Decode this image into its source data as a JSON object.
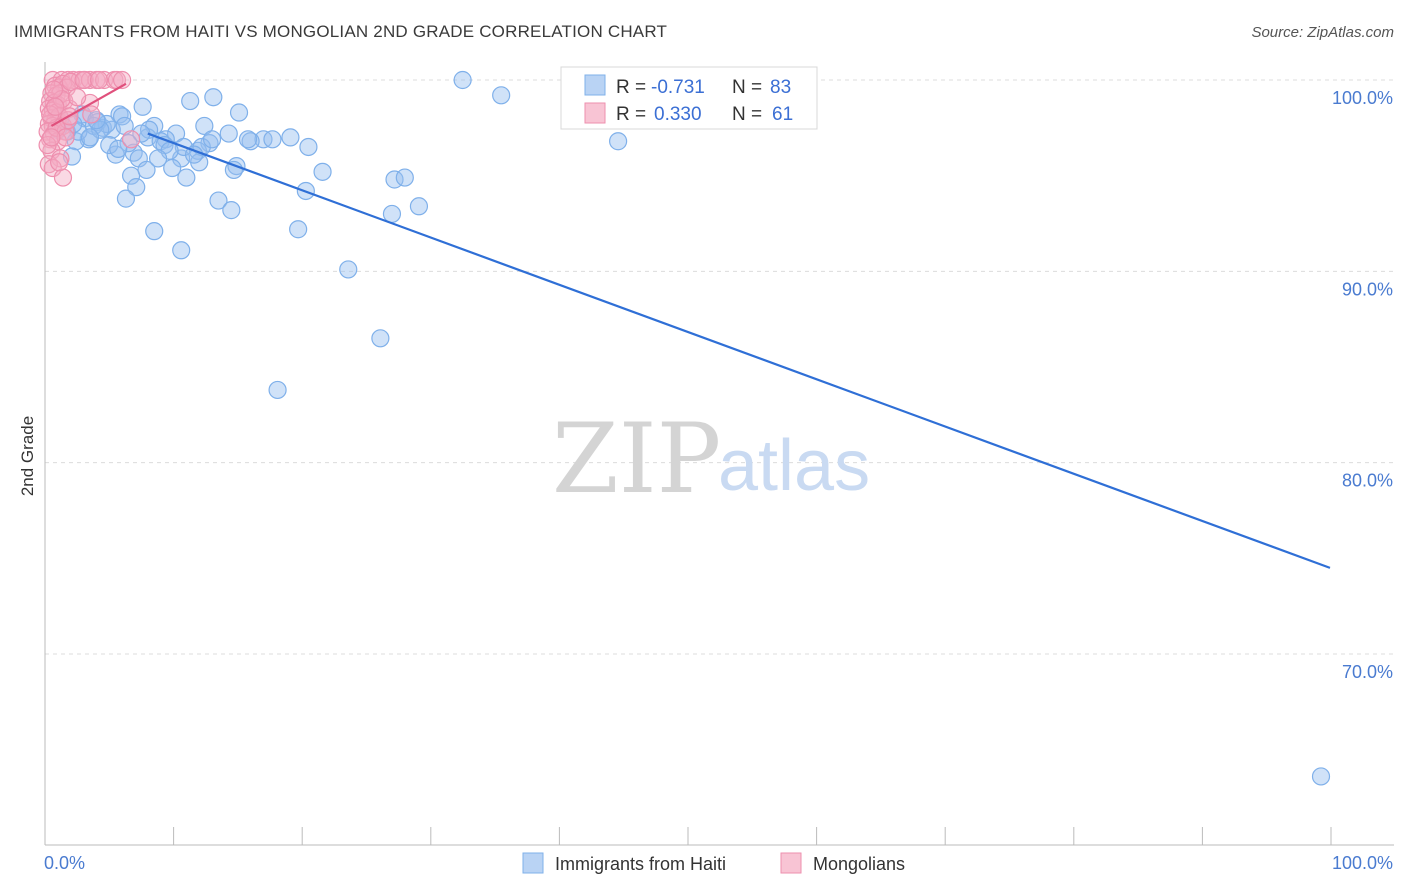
{
  "title": "IMMIGRANTS FROM HAITI VS MONGOLIAN 2ND GRADE CORRELATION CHART",
  "source": "Source: ZipAtlas.com",
  "watermark": {
    "zip": "ZIP",
    "atlas": "atlas"
  },
  "chart_data": {
    "type": "scatter",
    "title": "IMMIGRANTS FROM HAITI VS MONGOLIAN 2ND GRADE CORRELATION CHART",
    "xlabel": "",
    "ylabel": "2nd Grade",
    "xlim": [
      0,
      100
    ],
    "ylim": [
      61,
      101.5
    ],
    "x_tick_labels": [
      "0.0%",
      "100.0%"
    ],
    "y_ticks": [
      100,
      90,
      80,
      70
    ],
    "y_tick_labels": [
      "100.0%",
      "90.0%",
      "80.0%",
      "70.0%"
    ],
    "grid": true,
    "legend_position": "top-center",
    "legend": [
      {
        "name": "Immigrants from Haiti",
        "R_label": "R =",
        "R": "-0.731",
        "N_label": "N =",
        "N": "83",
        "color": "#7fb0ea",
        "fill": "#b9d3f4"
      },
      {
        "name": "Mongolians",
        "R_label": "R =",
        "R": "0.330",
        "N_label": "N =",
        "N": "61",
        "color": "#ee8fae",
        "fill": "#f8c4d4"
      }
    ],
    "series": [
      {
        "name": "Immigrants from Haiti",
        "color": "#7fb0ea",
        "trend": {
          "x": [
            8,
            100
          ],
          "y": [
            97.2,
            74.5
          ],
          "color": "#2f6fd6"
        },
        "points": [
          [
            32.5,
            100.0
          ],
          [
            35.5,
            99.2
          ],
          [
            11.3,
            98.9
          ],
          [
            13.1,
            99.1
          ],
          [
            7.6,
            98.6
          ],
          [
            15.1,
            98.3
          ],
          [
            5.8,
            98.2
          ],
          [
            6.0,
            98.1
          ],
          [
            3.1,
            98.0
          ],
          [
            1.2,
            98.0
          ],
          [
            4.1,
            97.8
          ],
          [
            4.5,
            97.5
          ],
          [
            5.2,
            97.4
          ],
          [
            8.5,
            97.6
          ],
          [
            12.4,
            97.6
          ],
          [
            10.2,
            97.2
          ],
          [
            14.3,
            97.2
          ],
          [
            19.1,
            97.0
          ],
          [
            17.0,
            96.9
          ],
          [
            8.0,
            97.0
          ],
          [
            9.4,
            96.9
          ],
          [
            9.0,
            96.8
          ],
          [
            3.4,
            96.9
          ],
          [
            12.8,
            96.7
          ],
          [
            2.4,
            96.8
          ],
          [
            20.5,
            96.5
          ],
          [
            6.9,
            96.2
          ],
          [
            11.9,
            96.3
          ],
          [
            2.1,
            96.0
          ],
          [
            5.5,
            96.1
          ],
          [
            7.3,
            95.9
          ],
          [
            10.6,
            95.9
          ],
          [
            12.0,
            95.7
          ],
          [
            14.9,
            95.5
          ],
          [
            7.9,
            95.3
          ],
          [
            9.9,
            95.4
          ],
          [
            21.6,
            95.2
          ],
          [
            6.7,
            95.0
          ],
          [
            11.0,
            94.9
          ],
          [
            27.2,
            94.8
          ],
          [
            28.0,
            94.9
          ],
          [
            14.7,
            95.3
          ],
          [
            7.1,
            94.4
          ],
          [
            20.3,
            94.2
          ],
          [
            6.3,
            93.8
          ],
          [
            13.5,
            93.7
          ],
          [
            14.5,
            93.2
          ],
          [
            27.0,
            93.0
          ],
          [
            29.1,
            93.4
          ],
          [
            19.7,
            92.2
          ],
          [
            8.5,
            92.1
          ],
          [
            10.6,
            91.1
          ],
          [
            23.6,
            90.1
          ],
          [
            26.1,
            86.5
          ],
          [
            18.1,
            83.8
          ],
          [
            44.6,
            96.8
          ],
          [
            2.6,
            97.3
          ],
          [
            4.8,
            97.7
          ],
          [
            9.3,
            96.6
          ],
          [
            17.7,
            96.9
          ],
          [
            6.2,
            97.6
          ],
          [
            1.7,
            97.3
          ],
          [
            12.2,
            96.5
          ],
          [
            5.0,
            96.6
          ],
          [
            8.1,
            97.4
          ],
          [
            16.0,
            96.8
          ],
          [
            3.8,
            97.6
          ],
          [
            10.8,
            96.5
          ],
          [
            99.3,
            63.6
          ],
          [
            1.0,
            97.4
          ],
          [
            2.9,
            98.2
          ],
          [
            4.3,
            97.4
          ],
          [
            11.6,
            96.1
          ],
          [
            15.8,
            96.9
          ],
          [
            7.5,
            97.2
          ],
          [
            6.5,
            96.7
          ],
          [
            3.5,
            97.0
          ],
          [
            9.7,
            96.3
          ],
          [
            13.0,
            96.9
          ],
          [
            2.2,
            97.7
          ],
          [
            5.7,
            96.4
          ],
          [
            8.8,
            95.9
          ],
          [
            4.0,
            97.9
          ]
        ]
      },
      {
        "name": "Mongolians",
        "color": "#ee8fae",
        "trend": {
          "x": [
            0.5,
            6.3
          ],
          "y": [
            97.6,
            99.8
          ],
          "color": "#e0507c"
        },
        "points": [
          [
            0.6,
            100.0
          ],
          [
            1.3,
            100.0
          ],
          [
            1.8,
            100.0
          ],
          [
            2.2,
            100.0
          ],
          [
            2.7,
            100.0
          ],
          [
            3.1,
            100.0
          ],
          [
            3.5,
            100.0
          ],
          [
            4.0,
            100.0
          ],
          [
            4.6,
            100.0
          ],
          [
            5.4,
            100.0
          ],
          [
            5.6,
            100.0
          ],
          [
            0.8,
            99.7
          ],
          [
            1.1,
            99.6
          ],
          [
            1.4,
            99.8
          ],
          [
            1.7,
            99.6
          ],
          [
            0.5,
            99.3
          ],
          [
            0.9,
            99.2
          ],
          [
            1.2,
            99.3
          ],
          [
            0.4,
            98.9
          ],
          [
            0.7,
            98.8
          ],
          [
            1.0,
            98.7
          ],
          [
            1.5,
            98.9
          ],
          [
            0.3,
            98.5
          ],
          [
            0.6,
            98.4
          ],
          [
            0.9,
            98.3
          ],
          [
            1.9,
            98.5
          ],
          [
            3.5,
            98.8
          ],
          [
            0.5,
            98.0
          ],
          [
            0.8,
            97.9
          ],
          [
            1.1,
            98.1
          ],
          [
            0.3,
            97.7
          ],
          [
            0.6,
            97.6
          ],
          [
            1.4,
            97.6
          ],
          [
            0.2,
            97.3
          ],
          [
            0.7,
            97.2
          ],
          [
            1.6,
            97.3
          ],
          [
            1.8,
            97.9
          ],
          [
            0.4,
            96.9
          ],
          [
            1.0,
            96.8
          ],
          [
            6.7,
            96.9
          ],
          [
            0.5,
            96.3
          ],
          [
            1.2,
            95.9
          ],
          [
            0.3,
            95.6
          ],
          [
            0.6,
            95.4
          ],
          [
            1.4,
            94.9
          ],
          [
            3.6,
            98.2
          ],
          [
            0.9,
            97.5
          ],
          [
            0.4,
            98.2
          ],
          [
            1.3,
            99.0
          ],
          [
            2.0,
            99.9
          ],
          [
            0.8,
            98.6
          ],
          [
            6.0,
            100.0
          ],
          [
            2.5,
            99.1
          ],
          [
            1.6,
            97.0
          ],
          [
            0.2,
            96.6
          ],
          [
            1.1,
            95.7
          ],
          [
            0.7,
            99.5
          ],
          [
            1.9,
            98.1
          ],
          [
            0.5,
            97.0
          ],
          [
            3.0,
            100.0
          ],
          [
            4.2,
            100.0
          ]
        ]
      }
    ]
  }
}
